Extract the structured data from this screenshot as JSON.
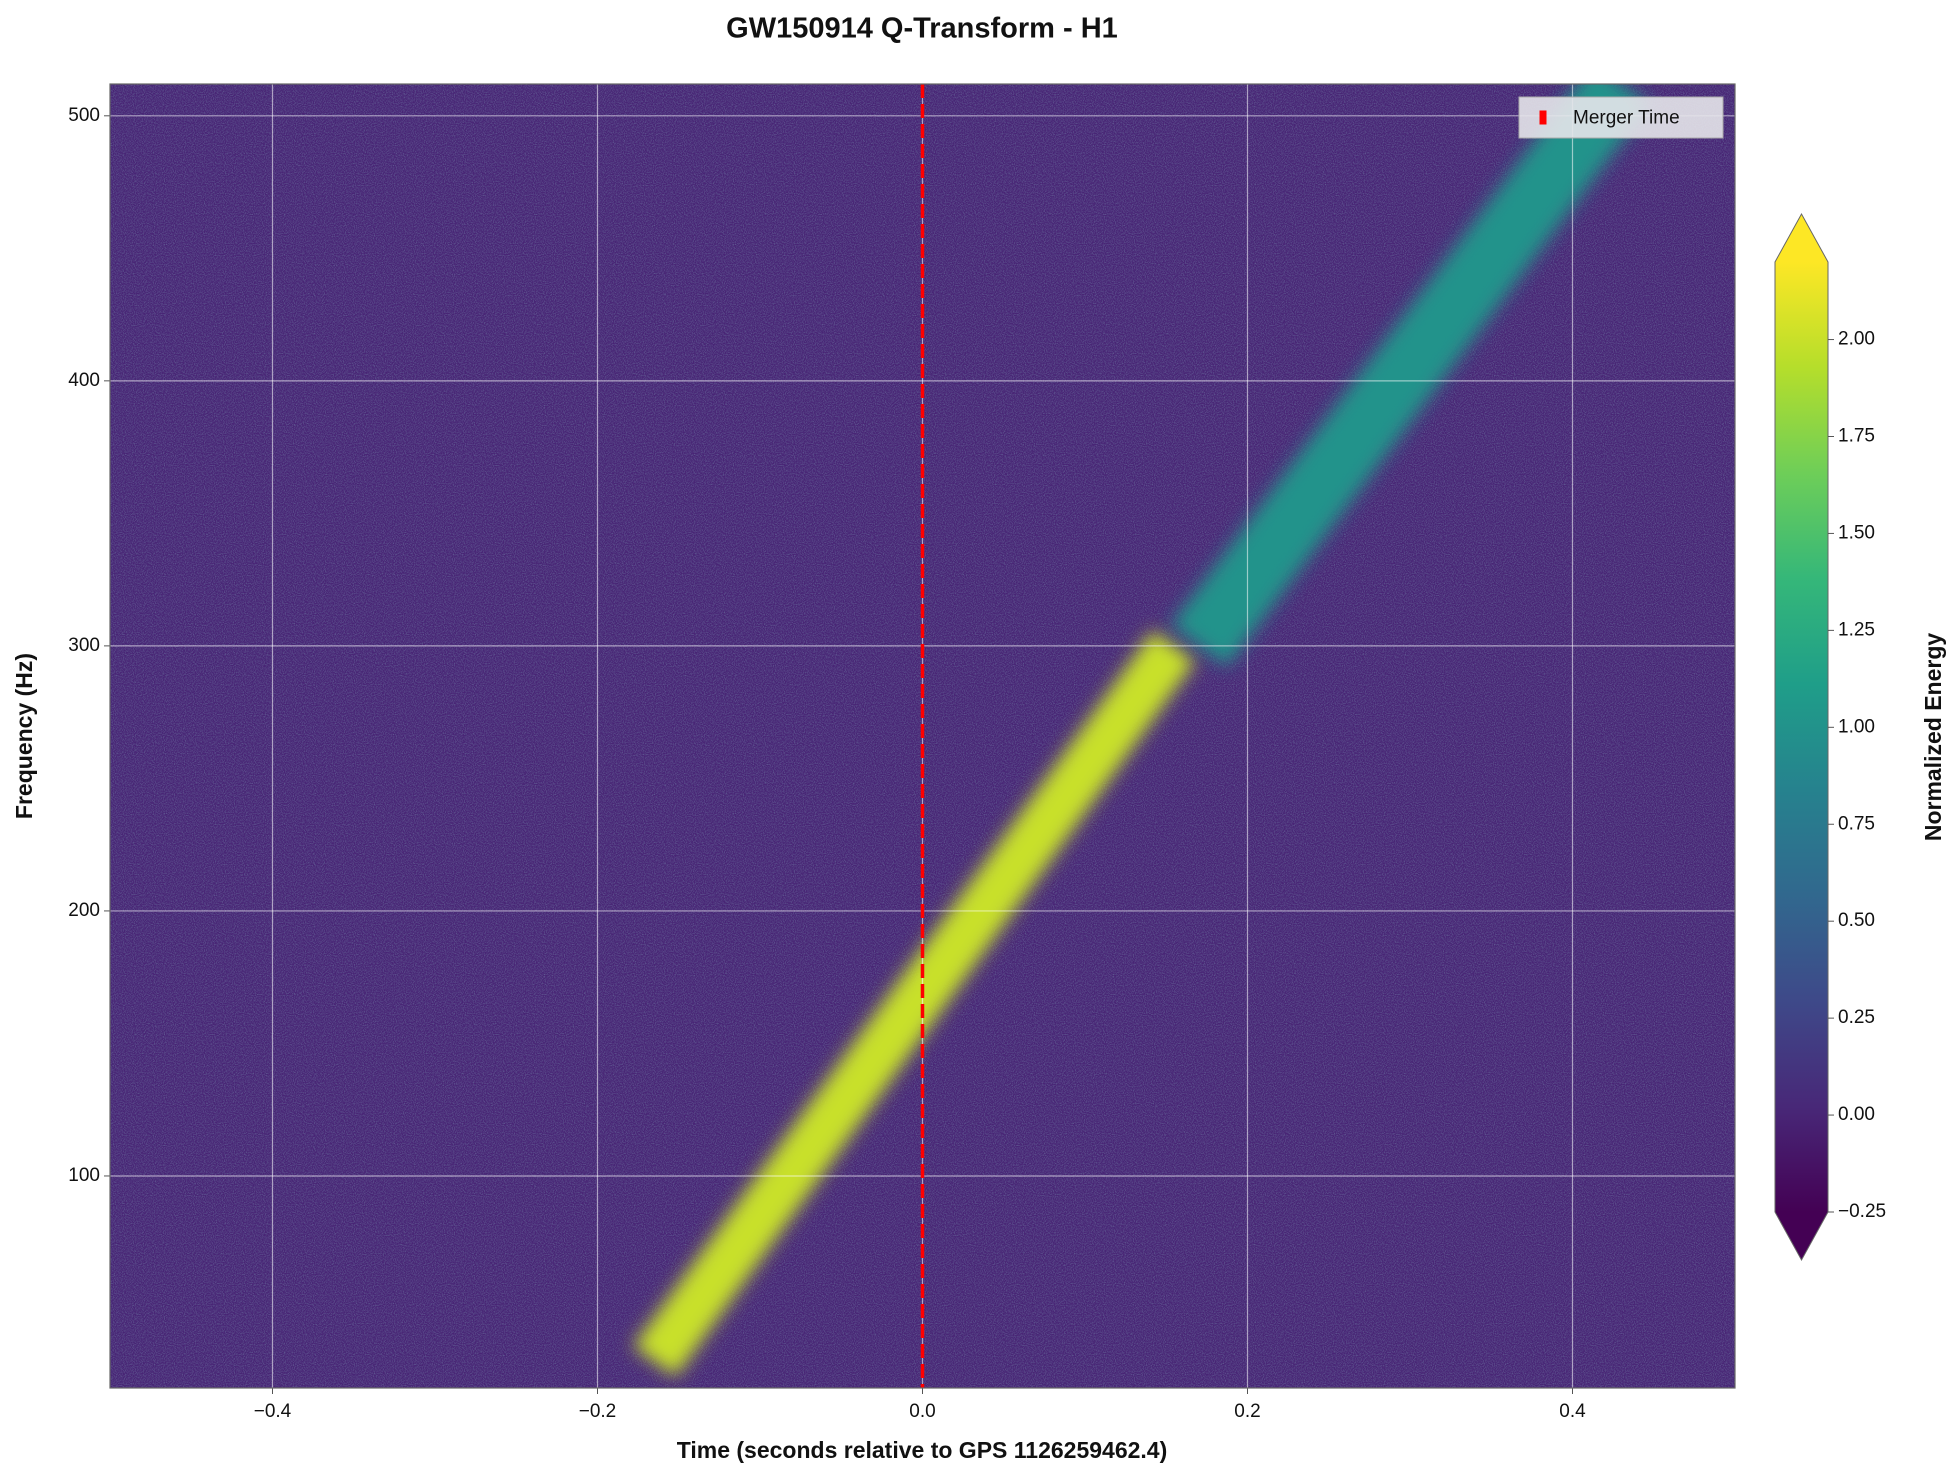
{
  "chart_data": {
    "type": "spectrogram",
    "title": "GW150914 Q-Transform - H1",
    "x_label": "Time (seconds relative to GPS 1126259462.4)",
    "y_label": "Frequency (Hz)",
    "xlim": [
      -0.5,
      0.5
    ],
    "ylim": [
      20,
      512
    ],
    "xticks": [
      {
        "value": -0.4,
        "label": "−0.4"
      },
      {
        "value": -0.2,
        "label": "−0.2"
      },
      {
        "value": 0,
        "label": "0.0"
      },
      0.2,
      0.4
    ],
    "yticks": [
      100,
      200,
      300,
      400,
      500
    ],
    "grid": true,
    "background_energy": 0,
    "bands": [
      {
        "x": [
          -0.165,
          0.155
        ],
        "y": [
          30,
          300
        ],
        "energy": 2.0
      },
      {
        "x": [
          0.17,
          0.43
        ],
        "y": [
          300,
          512
        ],
        "energy": 1.0
      }
    ],
    "vline": {
      "x": 0,
      "name": "Merger Time",
      "color": "#ff0000"
    },
    "legend_position": "upper right",
    "colorbar": {
      "label": "Normalized Energy",
      "clim": [
        -0.25,
        2.2
      ],
      "colormap": [
        "#440154",
        "#482878",
        "#3e4989",
        "#31688e",
        "#26828e",
        "#1f9e89",
        "#35b779",
        "#6ece58",
        "#b5de2b",
        "#fde725"
      ],
      "ticks": [
        {
          "value": -0.25,
          "label": "−0.25"
        },
        {
          "value": 0,
          "label": "0.00"
        },
        {
          "value": 0.25,
          "label": "0.25"
        },
        {
          "value": 0.5,
          "label": "0.50"
        },
        {
          "value": 0.75,
          "label": "0.75"
        },
        {
          "value": 1,
          "label": "1.00"
        },
        {
          "value": 1.25,
          "label": "1.25"
        },
        {
          "value": 1.5,
          "label": "1.50"
        },
        {
          "value": 1.75,
          "label": "1.75"
        },
        {
          "value": 2,
          "label": "2.00"
        }
      ]
    }
  }
}
